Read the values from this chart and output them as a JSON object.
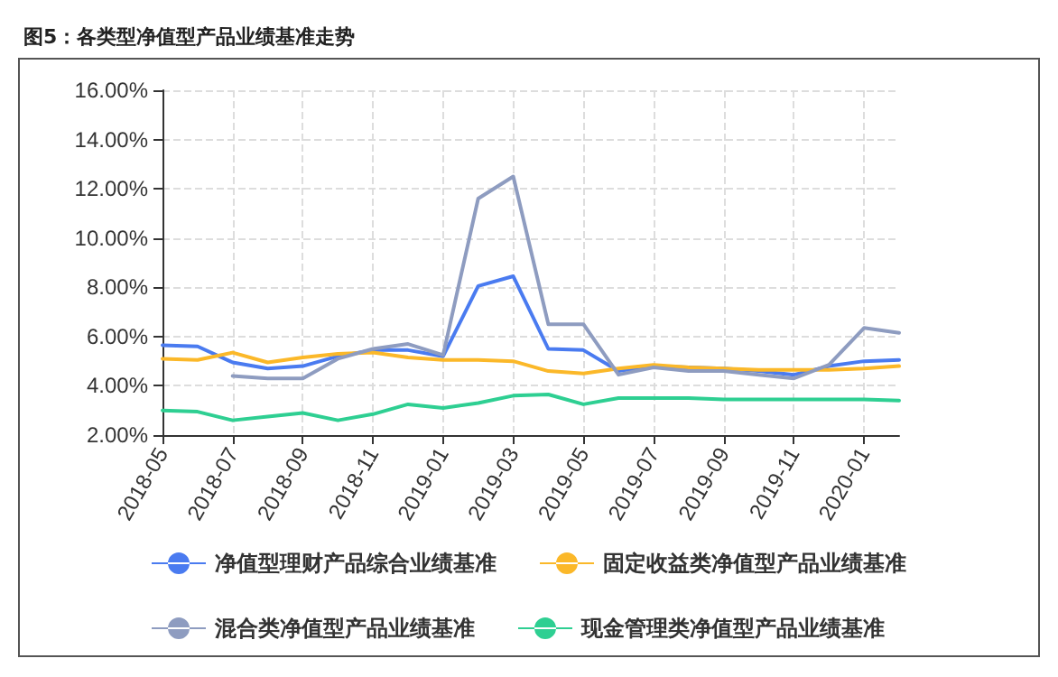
{
  "chart_data": {
    "type": "line",
    "title": "图5：各类型净值型产品业绩基准走势",
    "categories": [
      "2018-05",
      null,
      "2018-07",
      null,
      "2018-09",
      null,
      "2018-11",
      null,
      "2019-01",
      null,
      "2019-03",
      null,
      "2019-05",
      null,
      "2019-07",
      null,
      "2019-09",
      null,
      "2019-11",
      null,
      "2020-01",
      null
    ],
    "series": [
      {
        "name": "净值型理财产品综合业绩基准",
        "color": "#4a7bf0",
        "values": [
          5.65,
          5.6,
          4.95,
          4.7,
          4.8,
          5.2,
          5.45,
          5.45,
          5.2,
          8.05,
          8.45,
          5.5,
          5.45,
          4.6,
          4.8,
          4.75,
          4.7,
          4.6,
          4.45,
          4.8,
          5.0,
          5.05
        ]
      },
      {
        "name": "固定收益类净值型产品业绩基准",
        "color": "#fbb829",
        "values": [
          5.1,
          5.05,
          5.35,
          4.95,
          5.15,
          5.3,
          5.35,
          5.15,
          5.05,
          5.05,
          5.0,
          4.6,
          4.5,
          4.7,
          4.85,
          4.75,
          4.7,
          4.65,
          4.65,
          4.65,
          4.7,
          4.8
        ]
      },
      {
        "name": "混合类净值型产品业绩基准",
        "color": "#8e9cc0",
        "values": [
          null,
          null,
          4.4,
          4.3,
          4.3,
          5.1,
          5.5,
          5.7,
          5.25,
          11.6,
          12.5,
          6.5,
          6.5,
          4.45,
          4.75,
          4.6,
          4.6,
          4.45,
          4.3,
          4.85,
          6.35,
          6.15
        ]
      },
      {
        "name": "现金管理类净值型产品业绩基准",
        "color": "#2ecf92",
        "values": [
          3.0,
          2.95,
          2.6,
          2.75,
          2.9,
          2.6,
          2.85,
          3.25,
          3.1,
          3.3,
          3.6,
          3.65,
          3.25,
          3.5,
          3.5,
          3.5,
          3.45,
          3.45,
          3.45,
          3.45,
          3.45,
          3.4
        ]
      }
    ],
    "ylim": [
      2,
      16
    ],
    "yticks": [
      {
        "value": 2,
        "label": "2.00%"
      },
      {
        "value": 4,
        "label": "4.00%"
      },
      {
        "value": 6,
        "label": "6.00%"
      },
      {
        "value": 8,
        "label": "8.00%"
      },
      {
        "value": 10,
        "label": "10.00%"
      },
      {
        "value": 12,
        "label": "12.00%"
      },
      {
        "value": 14,
        "label": "14.00%"
      },
      {
        "value": 16,
        "label": "16.00%"
      }
    ],
    "grid": true,
    "legend": "bottom",
    "marker": "none",
    "line_style": "solid"
  }
}
